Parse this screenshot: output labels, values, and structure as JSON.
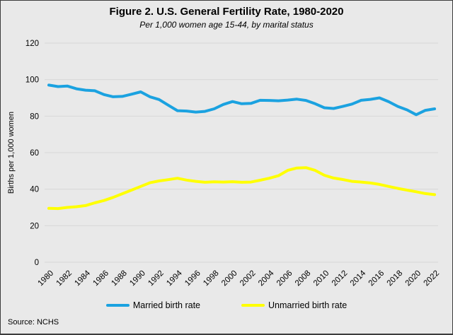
{
  "header": {
    "title": "Figure 2. U.S. General Fertility Rate, 1980-2020",
    "subtitle": "Per 1,000 women age 15-44, by marital status"
  },
  "source": "Source: NCHS",
  "colors": {
    "background": "#e9e9e9",
    "gridline": "#d8d8d8",
    "married_line": "#1ba2e0",
    "unmarried_line": "#ffff00",
    "text": "#000000",
    "border": "#3c3c3c"
  },
  "chart_data": {
    "type": "line",
    "title": "Figure 2. U.S. General Fertility Rate, 1980-2020",
    "subtitle": "Per 1,000 women age 15-44, by marital status",
    "xlabel": "",
    "ylabel": "Births per 1,000 women",
    "ylim": [
      0,
      120
    ],
    "ytick_step": 20,
    "grid": true,
    "legend_position": "bottom",
    "x": [
      1980,
      1981,
      1982,
      1983,
      1984,
      1985,
      1986,
      1987,
      1988,
      1989,
      1990,
      1991,
      1992,
      1993,
      1994,
      1995,
      1996,
      1997,
      1998,
      1999,
      2000,
      2001,
      2002,
      2003,
      2004,
      2005,
      2006,
      2007,
      2008,
      2009,
      2010,
      2011,
      2012,
      2013,
      2014,
      2015,
      2016,
      2017,
      2018,
      2019,
      2020,
      2021,
      2022
    ],
    "xtick_step": 2,
    "series": [
      {
        "name": "Married birth rate",
        "color": "#1ba2e0",
        "values": [
          97.0,
          96.2,
          96.5,
          95.0,
          94.2,
          93.9,
          91.8,
          90.6,
          90.8,
          92.0,
          93.3,
          90.6,
          89.1,
          86.0,
          83.0,
          82.8,
          82.2,
          82.6,
          84.0,
          86.4,
          88.0,
          86.8,
          87.0,
          88.7,
          88.6,
          88.4,
          88.8,
          89.3,
          88.6,
          86.8,
          84.6,
          84.2,
          85.3,
          86.6,
          88.7,
          89.2,
          90.0,
          87.9,
          85.3,
          83.4,
          80.8,
          83.2,
          84.0
        ]
      },
      {
        "name": "Unmarried birth rate",
        "color": "#ffff00",
        "values": [
          29.5,
          29.4,
          30.0,
          30.4,
          31.0,
          32.5,
          33.8,
          35.5,
          37.5,
          39.5,
          41.5,
          43.5,
          44.5,
          45.2,
          46.0,
          45.0,
          44.3,
          43.8,
          44.0,
          43.9,
          44.1,
          43.8,
          43.9,
          44.9,
          46.0,
          47.4,
          50.3,
          51.6,
          51.8,
          50.3,
          47.6,
          46.1,
          45.3,
          44.3,
          43.9,
          43.4,
          42.6,
          41.5,
          40.4,
          39.5,
          38.6,
          37.6,
          37.0
        ]
      }
    ]
  }
}
